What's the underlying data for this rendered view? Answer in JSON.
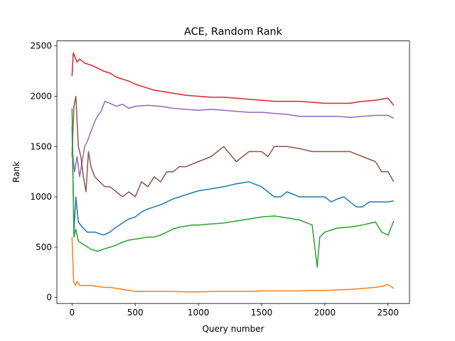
{
  "chart_data": {
    "type": "line",
    "title": "ACE, Random Rank",
    "xlabel": "Query number",
    "ylabel": "Rank",
    "xlim": [
      -120,
      2670
    ],
    "ylim": [
      -60,
      2550
    ],
    "xticks": [
      0,
      500,
      1000,
      1500,
      2000,
      2500
    ],
    "yticks": [
      0,
      500,
      1000,
      1500,
      2000,
      2500
    ],
    "grid": false,
    "legend": "none",
    "series": [
      {
        "color": "#d62728",
        "values": [
          [
            0,
            2200
          ],
          [
            10,
            2430
          ],
          [
            20,
            2400
          ],
          [
            40,
            2340
          ],
          [
            60,
            2370
          ],
          [
            100,
            2330
          ],
          [
            150,
            2310
          ],
          [
            200,
            2280
          ],
          [
            250,
            2250
          ],
          [
            300,
            2230
          ],
          [
            350,
            2190
          ],
          [
            400,
            2170
          ],
          [
            450,
            2150
          ],
          [
            500,
            2120
          ],
          [
            550,
            2100
          ],
          [
            600,
            2080
          ],
          [
            650,
            2060
          ],
          [
            700,
            2050
          ],
          [
            750,
            2040
          ],
          [
            800,
            2030
          ],
          [
            900,
            2010
          ],
          [
            1000,
            2000
          ],
          [
            1100,
            1990
          ],
          [
            1200,
            1990
          ],
          [
            1300,
            1980
          ],
          [
            1400,
            1970
          ],
          [
            1500,
            1960
          ],
          [
            1600,
            1950
          ],
          [
            1700,
            1950
          ],
          [
            1800,
            1950
          ],
          [
            1900,
            1940
          ],
          [
            2000,
            1930
          ],
          [
            2100,
            1930
          ],
          [
            2200,
            1930
          ],
          [
            2300,
            1950
          ],
          [
            2400,
            1960
          ],
          [
            2500,
            1980
          ],
          [
            2545,
            1910
          ]
        ]
      },
      {
        "color": "#9467bd",
        "values": [
          [
            0,
            1490
          ],
          [
            20,
            1250
          ],
          [
            40,
            1400
          ],
          [
            60,
            1200
          ],
          [
            80,
            1350
          ],
          [
            100,
            1500
          ],
          [
            120,
            1550
          ],
          [
            150,
            1650
          ],
          [
            180,
            1750
          ],
          [
            200,
            1800
          ],
          [
            230,
            1850
          ],
          [
            260,
            1950
          ],
          [
            300,
            1930
          ],
          [
            350,
            1900
          ],
          [
            400,
            1920
          ],
          [
            450,
            1880
          ],
          [
            500,
            1900
          ],
          [
            600,
            1910
          ],
          [
            700,
            1900
          ],
          [
            800,
            1880
          ],
          [
            900,
            1870
          ],
          [
            1000,
            1860
          ],
          [
            1100,
            1870
          ],
          [
            1200,
            1860
          ],
          [
            1300,
            1850
          ],
          [
            1400,
            1840
          ],
          [
            1500,
            1840
          ],
          [
            1600,
            1830
          ],
          [
            1700,
            1820
          ],
          [
            1800,
            1800
          ],
          [
            1900,
            1800
          ],
          [
            2000,
            1800
          ],
          [
            2100,
            1800
          ],
          [
            2200,
            1790
          ],
          [
            2300,
            1800
          ],
          [
            2400,
            1810
          ],
          [
            2500,
            1810
          ],
          [
            2545,
            1780
          ]
        ]
      },
      {
        "color": "#8c564b",
        "values": [
          [
            0,
            1400
          ],
          [
            15,
            1900
          ],
          [
            30,
            2000
          ],
          [
            50,
            1500
          ],
          [
            70,
            1400
          ],
          [
            90,
            1200
          ],
          [
            110,
            1050
          ],
          [
            130,
            1450
          ],
          [
            150,
            1300
          ],
          [
            180,
            1200
          ],
          [
            220,
            1150
          ],
          [
            260,
            1100
          ],
          [
            300,
            1100
          ],
          [
            350,
            1050
          ],
          [
            400,
            1000
          ],
          [
            450,
            1050
          ],
          [
            500,
            1000
          ],
          [
            550,
            1150
          ],
          [
            600,
            1100
          ],
          [
            650,
            1200
          ],
          [
            700,
            1150
          ],
          [
            750,
            1250
          ],
          [
            800,
            1250
          ],
          [
            850,
            1300
          ],
          [
            900,
            1300
          ],
          [
            1000,
            1350
          ],
          [
            1100,
            1400
          ],
          [
            1200,
            1500
          ],
          [
            1300,
            1350
          ],
          [
            1400,
            1450
          ],
          [
            1500,
            1450
          ],
          [
            1550,
            1400
          ],
          [
            1600,
            1500
          ],
          [
            1700,
            1500
          ],
          [
            1800,
            1480
          ],
          [
            1900,
            1450
          ],
          [
            2000,
            1450
          ],
          [
            2100,
            1450
          ],
          [
            2200,
            1450
          ],
          [
            2300,
            1400
          ],
          [
            2400,
            1350
          ],
          [
            2450,
            1250
          ],
          [
            2500,
            1250
          ],
          [
            2545,
            1150
          ]
        ]
      },
      {
        "color": "#1f77b4",
        "values": [
          [
            0,
            1700
          ],
          [
            15,
            650
          ],
          [
            30,
            1000
          ],
          [
            50,
            750
          ],
          [
            80,
            700
          ],
          [
            120,
            650
          ],
          [
            180,
            650
          ],
          [
            250,
            620
          ],
          [
            300,
            650
          ],
          [
            350,
            700
          ],
          [
            400,
            740
          ],
          [
            450,
            780
          ],
          [
            500,
            800
          ],
          [
            550,
            850
          ],
          [
            600,
            880
          ],
          [
            650,
            900
          ],
          [
            700,
            920
          ],
          [
            750,
            950
          ],
          [
            800,
            980
          ],
          [
            850,
            1000
          ],
          [
            900,
            1020
          ],
          [
            950,
            1040
          ],
          [
            1000,
            1060
          ],
          [
            1100,
            1080
          ],
          [
            1200,
            1100
          ],
          [
            1300,
            1130
          ],
          [
            1400,
            1150
          ],
          [
            1500,
            1100
          ],
          [
            1550,
            1050
          ],
          [
            1600,
            1000
          ],
          [
            1650,
            1000
          ],
          [
            1700,
            1050
          ],
          [
            1800,
            1000
          ],
          [
            1900,
            1000
          ],
          [
            2000,
            1000
          ],
          [
            2050,
            950
          ],
          [
            2100,
            980
          ],
          [
            2150,
            1000
          ],
          [
            2200,
            950
          ],
          [
            2250,
            900
          ],
          [
            2300,
            900
          ],
          [
            2350,
            950
          ],
          [
            2400,
            950
          ],
          [
            2450,
            950
          ],
          [
            2500,
            950
          ],
          [
            2545,
            960
          ]
        ]
      },
      {
        "color": "#2ca02c",
        "values": [
          [
            0,
            1880
          ],
          [
            15,
            600
          ],
          [
            30,
            680
          ],
          [
            50,
            560
          ],
          [
            100,
            520
          ],
          [
            150,
            480
          ],
          [
            200,
            460
          ],
          [
            250,
            480
          ],
          [
            300,
            500
          ],
          [
            350,
            520
          ],
          [
            400,
            550
          ],
          [
            450,
            570
          ],
          [
            500,
            580
          ],
          [
            550,
            590
          ],
          [
            600,
            600
          ],
          [
            650,
            600
          ],
          [
            700,
            620
          ],
          [
            750,
            650
          ],
          [
            800,
            680
          ],
          [
            850,
            700
          ],
          [
            900,
            710
          ],
          [
            950,
            720
          ],
          [
            1000,
            720
          ],
          [
            1100,
            730
          ],
          [
            1200,
            740
          ],
          [
            1300,
            760
          ],
          [
            1400,
            780
          ],
          [
            1500,
            800
          ],
          [
            1600,
            810
          ],
          [
            1700,
            790
          ],
          [
            1800,
            770
          ],
          [
            1900,
            720
          ],
          [
            1940,
            300
          ],
          [
            1960,
            600
          ],
          [
            2000,
            650
          ],
          [
            2100,
            690
          ],
          [
            2200,
            700
          ],
          [
            2300,
            720
          ],
          [
            2400,
            750
          ],
          [
            2450,
            650
          ],
          [
            2500,
            620
          ],
          [
            2545,
            760
          ]
        ]
      },
      {
        "color": "#ff7f0e",
        "values": [
          [
            0,
            600
          ],
          [
            5,
            420
          ],
          [
            12,
            160
          ],
          [
            25,
            120
          ],
          [
            40,
            160
          ],
          [
            60,
            120
          ],
          [
            100,
            120
          ],
          [
            150,
            120
          ],
          [
            200,
            110
          ],
          [
            250,
            100
          ],
          [
            300,
            100
          ],
          [
            350,
            90
          ],
          [
            400,
            80
          ],
          [
            450,
            70
          ],
          [
            500,
            60
          ],
          [
            550,
            60
          ],
          [
            600,
            60
          ],
          [
            700,
            60
          ],
          [
            800,
            60
          ],
          [
            900,
            55
          ],
          [
            1000,
            55
          ],
          [
            1100,
            60
          ],
          [
            1200,
            60
          ],
          [
            1300,
            60
          ],
          [
            1400,
            60
          ],
          [
            1500,
            65
          ],
          [
            1600,
            65
          ],
          [
            1700,
            65
          ],
          [
            1800,
            65
          ],
          [
            1900,
            70
          ],
          [
            2000,
            70
          ],
          [
            2100,
            75
          ],
          [
            2200,
            80
          ],
          [
            2300,
            90
          ],
          [
            2400,
            100
          ],
          [
            2450,
            110
          ],
          [
            2500,
            130
          ],
          [
            2545,
            90
          ]
        ]
      }
    ]
  }
}
